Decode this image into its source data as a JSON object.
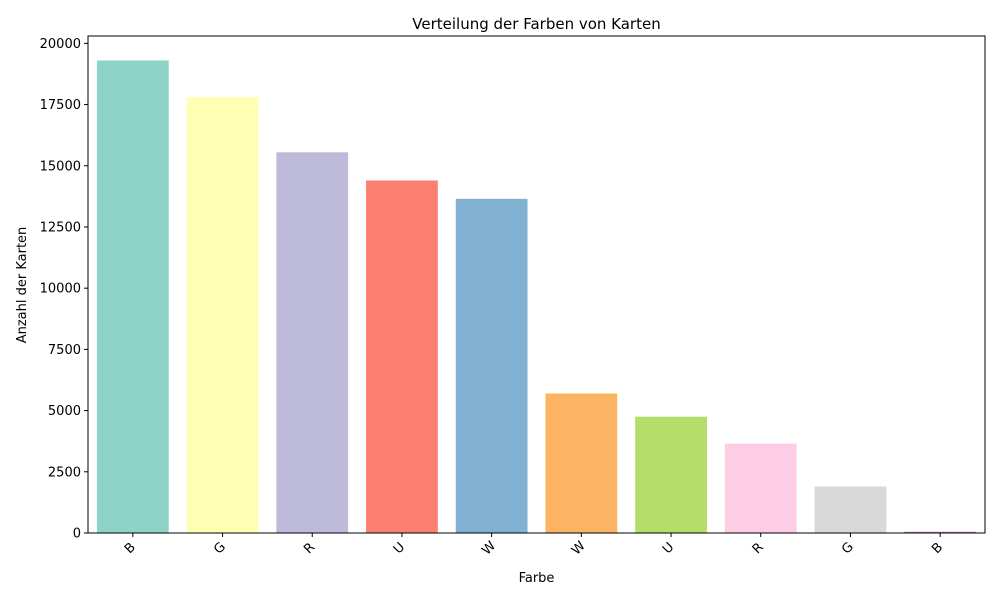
{
  "chart_data": {
    "type": "bar",
    "title": "Verteilung der Farben von Karten",
    "xlabel": "Farbe",
    "ylabel": "Anzahl der Karten",
    "categories": [
      "B",
      "G",
      "R",
      "U",
      "W",
      "W",
      "U",
      "R",
      "G",
      "B"
    ],
    "values": [
      19300,
      17800,
      15550,
      14400,
      13650,
      5700,
      4750,
      3650,
      1900,
      50
    ],
    "colors": [
      "#8dd3c7",
      "#ffffb3",
      "#bebada",
      "#fb8072",
      "#80b1d3",
      "#fdb462",
      "#b3de69",
      "#fccde5",
      "#d9d9d9",
      "#bc80bd"
    ],
    "ylim": [
      0,
      20300
    ],
    "yticks": [
      0,
      2500,
      5000,
      7500,
      10000,
      12500,
      15000,
      17500,
      20000
    ],
    "grid": false,
    "legend": "none"
  }
}
